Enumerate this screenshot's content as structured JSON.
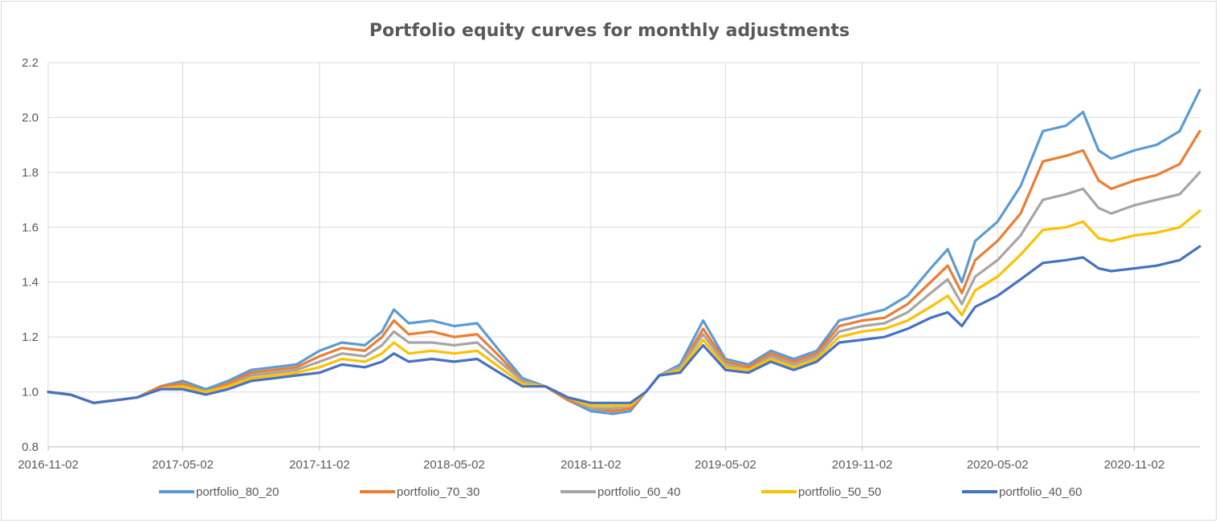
{
  "chart_data": {
    "type": "line",
    "title": "Portfolio equity curves for monthly adjustments",
    "xlabel": "",
    "ylabel": "",
    "ylim": [
      0.8,
      2.2
    ],
    "y_ticks": [
      "0.8",
      "1.0",
      "1.2",
      "1.4",
      "1.6",
      "1.8",
      "2.0",
      "2.2"
    ],
    "x_range": [
      "2016-11-02",
      "2021-01-29"
    ],
    "x_ticks": [
      "2016-11-02",
      "2017-05-02",
      "2017-11-02",
      "2018-05-02",
      "2018-11-02",
      "2019-05-02",
      "2019-11-02",
      "2020-05-02",
      "2020-11-02"
    ],
    "grid": true,
    "legend_position": "bottom",
    "x": [
      "2016-11-02",
      "2016-12-02",
      "2017-01-02",
      "2017-02-02",
      "2017-03-02",
      "2017-04-02",
      "2017-05-02",
      "2017-06-02",
      "2017-07-02",
      "2017-08-02",
      "2017-09-02",
      "2017-10-02",
      "2017-11-02",
      "2017-12-02",
      "2018-01-02",
      "2018-01-25",
      "2018-02-10",
      "2018-03-02",
      "2018-04-02",
      "2018-05-02",
      "2018-06-02",
      "2018-07-02",
      "2018-08-02",
      "2018-09-02",
      "2018-10-02",
      "2018-11-02",
      "2018-12-02",
      "2018-12-25",
      "2019-01-15",
      "2019-02-02",
      "2019-03-02",
      "2019-04-02",
      "2019-05-02",
      "2019-06-02",
      "2019-07-02",
      "2019-08-02",
      "2019-09-02",
      "2019-10-02",
      "2019-11-02",
      "2019-12-02",
      "2020-01-02",
      "2020-02-02",
      "2020-02-25",
      "2020-03-15",
      "2020-04-02",
      "2020-05-02",
      "2020-06-02",
      "2020-07-02",
      "2020-08-02",
      "2020-08-25",
      "2020-09-15",
      "2020-10-02",
      "2020-11-02",
      "2020-12-02",
      "2021-01-02",
      "2021-01-29"
    ],
    "series": [
      {
        "name": "portfolio_80_20",
        "color": "#5b9bd5",
        "values": [
          1.0,
          0.99,
          0.96,
          0.97,
          0.98,
          1.02,
          1.04,
          1.01,
          1.04,
          1.08,
          1.09,
          1.1,
          1.15,
          1.18,
          1.17,
          1.22,
          1.3,
          1.25,
          1.26,
          1.24,
          1.25,
          1.15,
          1.05,
          1.02,
          0.97,
          0.93,
          0.92,
          0.93,
          1.0,
          1.06,
          1.1,
          1.26,
          1.12,
          1.1,
          1.15,
          1.12,
          1.15,
          1.26,
          1.28,
          1.3,
          1.35,
          1.45,
          1.52,
          1.4,
          1.55,
          1.62,
          1.75,
          1.95,
          1.97,
          2.02,
          1.88,
          1.85,
          1.88,
          1.9,
          1.95,
          2.1
        ]
      },
      {
        "name": "portfolio_70_30",
        "color": "#ed7d31",
        "values": [
          1.0,
          0.99,
          0.96,
          0.97,
          0.98,
          1.02,
          1.03,
          1.0,
          1.03,
          1.07,
          1.08,
          1.09,
          1.13,
          1.16,
          1.15,
          1.2,
          1.26,
          1.21,
          1.22,
          1.2,
          1.21,
          1.13,
          1.04,
          1.02,
          0.97,
          0.94,
          0.93,
          0.94,
          1.0,
          1.06,
          1.09,
          1.23,
          1.11,
          1.09,
          1.14,
          1.11,
          1.14,
          1.24,
          1.26,
          1.27,
          1.32,
          1.4,
          1.46,
          1.36,
          1.48,
          1.55,
          1.65,
          1.84,
          1.86,
          1.88,
          1.77,
          1.74,
          1.77,
          1.79,
          1.83,
          1.95
        ]
      },
      {
        "name": "portfolio_60_40",
        "color": "#a5a5a5",
        "values": [
          1.0,
          0.99,
          0.96,
          0.97,
          0.98,
          1.01,
          1.02,
          1.0,
          1.02,
          1.06,
          1.07,
          1.08,
          1.11,
          1.14,
          1.13,
          1.17,
          1.22,
          1.18,
          1.18,
          1.17,
          1.18,
          1.11,
          1.04,
          1.02,
          0.98,
          0.94,
          0.94,
          0.95,
          1.0,
          1.06,
          1.09,
          1.21,
          1.1,
          1.08,
          1.13,
          1.1,
          1.13,
          1.22,
          1.24,
          1.25,
          1.29,
          1.36,
          1.41,
          1.32,
          1.42,
          1.48,
          1.57,
          1.7,
          1.72,
          1.74,
          1.67,
          1.65,
          1.68,
          1.7,
          1.72,
          1.8
        ]
      },
      {
        "name": "portfolio_50_50",
        "color": "#ffc000",
        "values": [
          1.0,
          0.99,
          0.96,
          0.97,
          0.98,
          1.01,
          1.02,
          1.0,
          1.02,
          1.05,
          1.06,
          1.07,
          1.09,
          1.12,
          1.11,
          1.14,
          1.18,
          1.14,
          1.15,
          1.14,
          1.15,
          1.09,
          1.03,
          1.02,
          0.98,
          0.95,
          0.95,
          0.95,
          1.0,
          1.06,
          1.08,
          1.19,
          1.09,
          1.08,
          1.12,
          1.09,
          1.12,
          1.2,
          1.22,
          1.23,
          1.26,
          1.31,
          1.35,
          1.28,
          1.37,
          1.42,
          1.5,
          1.59,
          1.6,
          1.62,
          1.56,
          1.55,
          1.57,
          1.58,
          1.6,
          1.66
        ]
      },
      {
        "name": "portfolio_40_60",
        "color": "#4472c4",
        "values": [
          1.0,
          0.99,
          0.96,
          0.97,
          0.98,
          1.01,
          1.01,
          0.99,
          1.01,
          1.04,
          1.05,
          1.06,
          1.07,
          1.1,
          1.09,
          1.11,
          1.14,
          1.11,
          1.12,
          1.11,
          1.12,
          1.07,
          1.02,
          1.02,
          0.98,
          0.96,
          0.96,
          0.96,
          1.0,
          1.06,
          1.07,
          1.17,
          1.08,
          1.07,
          1.11,
          1.08,
          1.11,
          1.18,
          1.19,
          1.2,
          1.23,
          1.27,
          1.29,
          1.24,
          1.31,
          1.35,
          1.41,
          1.47,
          1.48,
          1.49,
          1.45,
          1.44,
          1.45,
          1.46,
          1.48,
          1.53
        ]
      }
    ]
  }
}
